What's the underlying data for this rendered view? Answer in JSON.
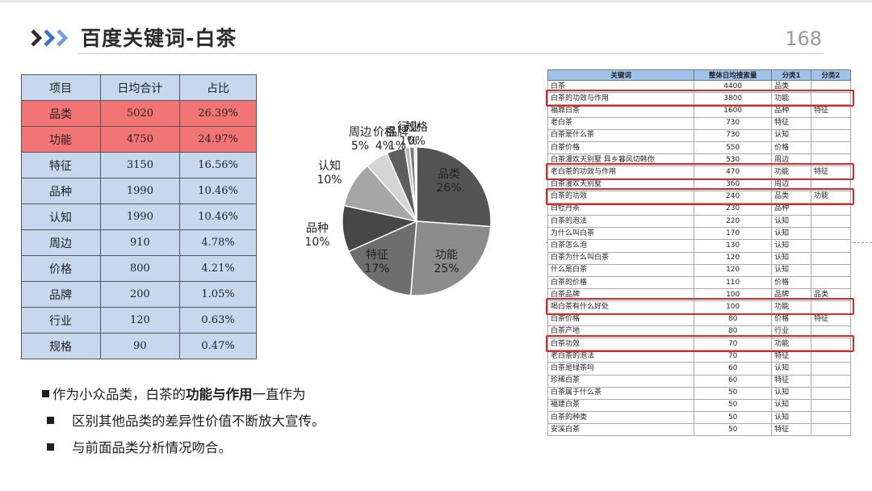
{
  "slide": {
    "title": "百度关键词-白茶",
    "page_number": "168",
    "accent_color": "#3a6fd0"
  },
  "summary_table": {
    "headers": [
      "项目",
      "日均合计",
      "占比"
    ],
    "rows": [
      {
        "item": "品类",
        "daily_total": "5020",
        "share": "26.39%",
        "highlight": true
      },
      {
        "item": "功能",
        "daily_total": "4750",
        "share": "24.97%",
        "highlight": true
      },
      {
        "item": "特征",
        "daily_total": "3150",
        "share": "16.56%",
        "highlight": false
      },
      {
        "item": "品种",
        "daily_total": "1990",
        "share": "10.46%",
        "highlight": false
      },
      {
        "item": "认知",
        "daily_total": "1990",
        "share": "10.46%",
        "highlight": false
      },
      {
        "item": "周边",
        "daily_total": "910",
        "share": "4.78%",
        "highlight": false
      },
      {
        "item": "价格",
        "daily_total": "800",
        "share": "4.21%",
        "highlight": false
      },
      {
        "item": "品牌",
        "daily_total": "200",
        "share": "1.05%",
        "highlight": false
      },
      {
        "item": "行业",
        "daily_total": "120",
        "share": "0.63%",
        "highlight": false
      },
      {
        "item": "规格",
        "daily_total": "90",
        "share": "0.47%",
        "highlight": false
      }
    ],
    "highlight_color": "#f27474",
    "base_color": "#c6d7ee"
  },
  "chart_data": {
    "type": "pie",
    "slices": [
      {
        "label": "品类",
        "value": 26,
        "text": "26%",
        "color": "#545454"
      },
      {
        "label": "功能",
        "value": 25,
        "text": "25%",
        "color": "#8c8c8c"
      },
      {
        "label": "特征",
        "value": 17,
        "text": "17%",
        "color": "#6e6e6e"
      },
      {
        "label": "品种",
        "value": 10,
        "text": "10%",
        "color": "#474747"
      },
      {
        "label": "认知",
        "value": 10,
        "text": "10%",
        "color": "#a6a6a6"
      },
      {
        "label": "周边",
        "value": 5,
        "text": "5%",
        "color": "#d4d4d4"
      },
      {
        "label": "价格",
        "value": 4,
        "text": "4%",
        "color": "#5e5e5e"
      },
      {
        "label": "品牌",
        "value": 1,
        "text": "1%",
        "color": "#b8b8b8"
      },
      {
        "label": "行业",
        "value": 1,
        "text": "1%",
        "color": "#7a7a7a"
      },
      {
        "label": "规格",
        "value": 0.5,
        "text": "0%",
        "color": "#e6e6e6"
      }
    ]
  },
  "bullets": {
    "line1_prefix": "作为小众品类，白茶的",
    "line1_bold": "功能与作用",
    "line1_suffix": "一直作为",
    "line2": "区别其他品类的差异性价值不断放大宣传。",
    "line3": "与前面品类分析情况吻合。"
  },
  "keyword_table": {
    "headers": [
      "关键词",
      "整体日均搜索量",
      "分类1",
      "分类2"
    ],
    "rows": [
      [
        "白茶",
        "4400",
        "品类",
        ""
      ],
      [
        "白茶的功效与作用",
        "3800",
        "功能",
        ""
      ],
      [
        "福鼎白茶",
        "1600",
        "品种",
        "特征"
      ],
      [
        "老白茶",
        "730",
        "特征",
        ""
      ],
      [
        "白茶是什么茶",
        "730",
        "认知",
        ""
      ],
      [
        "白茶价格",
        "550",
        "价格",
        ""
      ],
      [
        "白茶漫欢天别墅 异乡暮风切韩你",
        "530",
        "周边",
        ""
      ],
      [
        "老白茶的功效与作用",
        "470",
        "功能",
        "特征"
      ],
      [
        "白茶漫欢天别墅",
        "360",
        "周边",
        ""
      ],
      [
        "白茶的功效",
        "240",
        "品类",
        "功能"
      ],
      [
        "白牡丹茶",
        "230",
        "品种",
        ""
      ],
      [
        "白茶的泡法",
        "220",
        "认知",
        ""
      ],
      [
        "为什么叫白茶",
        "170",
        "认知",
        ""
      ],
      [
        "白茶怎么泡",
        "130",
        "认知",
        ""
      ],
      [
        "白茶为什么叫白茶",
        "120",
        "认知",
        ""
      ],
      [
        "什么是白茶",
        "120",
        "认知",
        ""
      ],
      [
        "白茶的价格",
        "110",
        "价格",
        ""
      ],
      [
        "白茶品牌",
        "100",
        "品牌",
        "品类"
      ],
      [
        "喝白茶有什么好处",
        "100",
        "功能",
        ""
      ],
      [
        "白茶价格",
        "80",
        "价格",
        "特征"
      ],
      [
        "白茶产地",
        "80",
        "行业",
        ""
      ],
      [
        "白茶功效",
        "70",
        "功能",
        ""
      ],
      [
        "老白茶的泡法",
        "70",
        "特征",
        ""
      ],
      [
        "白茶是绿茶吗",
        "60",
        "认知",
        ""
      ],
      [
        "珍稀白茶",
        "60",
        "特征",
        ""
      ],
      [
        "白茶属于什么茶",
        "50",
        "认知",
        ""
      ],
      [
        "福建白茶",
        "50",
        "认知",
        ""
      ],
      [
        "白茶的种类",
        "50",
        "认知",
        ""
      ],
      [
        "安溪白茶",
        "50",
        "特征",
        ""
      ]
    ],
    "highlighted_rows": [
      1,
      7,
      9,
      18,
      21
    ]
  }
}
